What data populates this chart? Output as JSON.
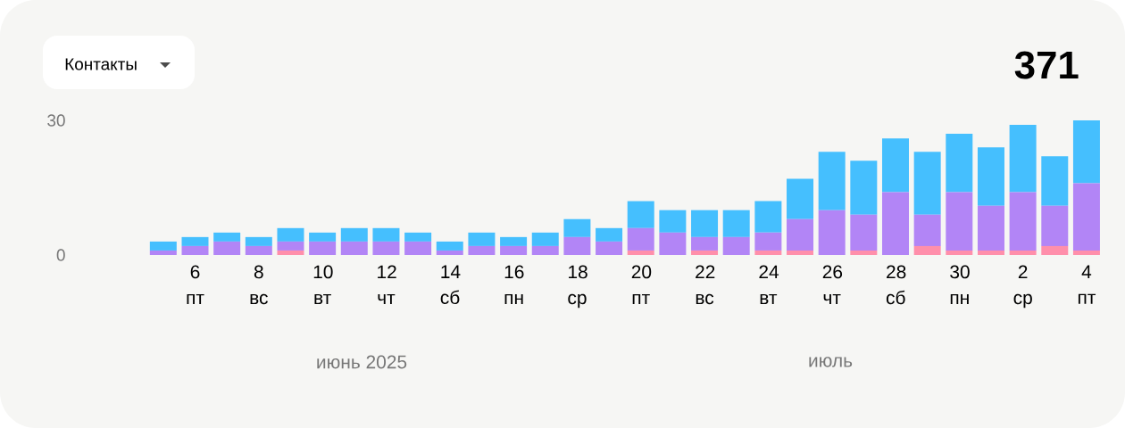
{
  "chart_data": {
    "type": "bar",
    "stacked": true,
    "title": "Контакты",
    "subtitle": "371",
    "categories": [
      null,
      "6 пт",
      null,
      "8 вс",
      null,
      "10 вт",
      null,
      "12 чт",
      null,
      "14 сб",
      null,
      "16 пн",
      null,
      "18 ср",
      null,
      "20 пт",
      null,
      "22 вс",
      null,
      "24 вт",
      null,
      "26 чт",
      null,
      "28 сб",
      null,
      "30 пн",
      null,
      "2 ср",
      null,
      "4 пт"
    ],
    "series": [
      {
        "color": "#ff8fab",
        "values": [
          0,
          0,
          0,
          0,
          1,
          0,
          0,
          0,
          0,
          0,
          0,
          0,
          0,
          0,
          0,
          1,
          0,
          1,
          0,
          1,
          1,
          0,
          1,
          0,
          2,
          1,
          1,
          1,
          2,
          1
        ]
      },
      {
        "color": "#b285f6",
        "values": [
          1,
          2,
          3,
          2,
          2,
          3,
          3,
          3,
          3,
          1,
          2,
          2,
          2,
          4,
          3,
          5,
          5,
          3,
          4,
          4,
          7,
          10,
          8,
          14,
          7,
          13,
          10,
          13,
          9,
          15
        ]
      },
      {
        "color": "#45bffe",
        "values": [
          2,
          2,
          2,
          2,
          3,
          2,
          3,
          3,
          2,
          2,
          3,
          2,
          3,
          4,
          3,
          6,
          5,
          6,
          6,
          7,
          9,
          13,
          12,
          12,
          14,
          13,
          13,
          15,
          11,
          14
        ]
      }
    ],
    "ylim": [
      0,
      31
    ],
    "yticks": [
      0,
      30
    ],
    "annotations": [
      "июнь 2025",
      "июль"
    ]
  }
}
